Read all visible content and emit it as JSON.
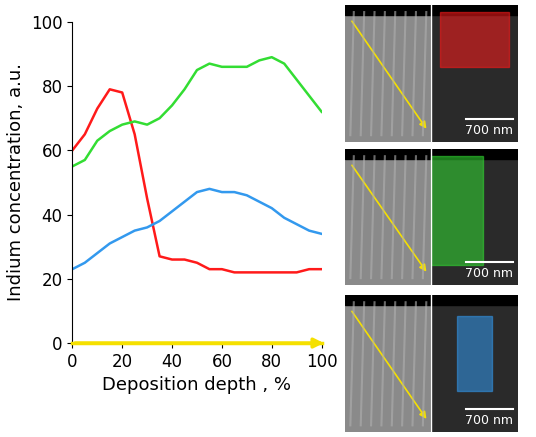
{
  "chart_data": {
    "type": "line",
    "x_label": "Deposition depth , %",
    "y_label": "Indium concentration, a.u.",
    "x": [
      0,
      5,
      10,
      15,
      20,
      25,
      30,
      35,
      40,
      45,
      50,
      55,
      60,
      65,
      70,
      75,
      80,
      85,
      90,
      95,
      100
    ],
    "series": [
      {
        "color": "#ff1a1a",
        "values": [
          60,
          65,
          73,
          79,
          78,
          65,
          45,
          27,
          26,
          26,
          25,
          23,
          23,
          22,
          22,
          22,
          22,
          22,
          22,
          23,
          23
        ]
      },
      {
        "color": "#33dd33",
        "values": [
          55,
          57,
          63,
          66,
          68,
          69,
          68,
          70,
          74,
          79,
          85,
          87,
          86,
          86,
          86,
          88,
          89,
          87,
          82,
          77,
          72
        ]
      },
      {
        "color": "#3399ee",
        "values": [
          23,
          25,
          28,
          31,
          33,
          35,
          36,
          38,
          41,
          44,
          47,
          48,
          47,
          47,
          46,
          44,
          42,
          39,
          37,
          35,
          34
        ]
      }
    ],
    "xlim": [
      0,
      100
    ],
    "xticks": [
      0,
      20,
      40,
      60,
      80,
      100
    ],
    "ylim": [
      0,
      100
    ],
    "yticks": [
      0,
      20,
      40,
      60,
      80,
      100
    ],
    "grid": false
  },
  "panels": {
    "scale_bars": [
      "700 nm",
      "700 nm",
      "700 nm"
    ]
  }
}
